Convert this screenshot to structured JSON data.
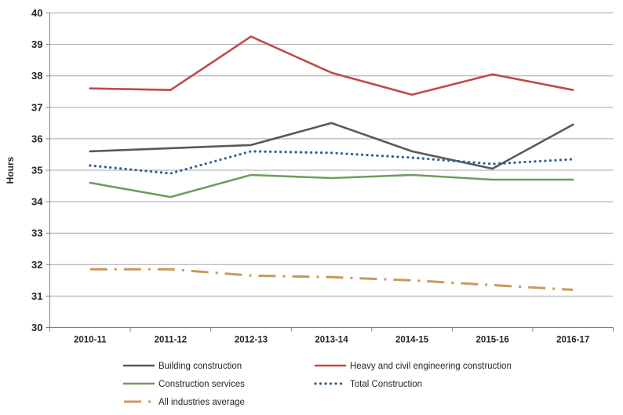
{
  "chart_data": {
    "type": "line",
    "title": "",
    "xlabel": "",
    "ylabel": "Hours",
    "ylim": [
      30,
      40
    ],
    "yticks": [
      30,
      31,
      32,
      33,
      34,
      35,
      36,
      37,
      38,
      39,
      40
    ],
    "grid": true,
    "legend_position": "bottom",
    "categories": [
      "2010-11",
      "2011-12",
      "2012-13",
      "2013-14",
      "2014-15",
      "2015-16",
      "2016-17"
    ],
    "series": [
      {
        "name": "Building construction",
        "color": "#595959",
        "style": "solid",
        "values": [
          35.6,
          35.7,
          35.8,
          36.5,
          35.6,
          35.05,
          36.45
        ]
      },
      {
        "name": "Heavy and civil engineering construction",
        "color": "#BE4B48",
        "style": "solid",
        "values": [
          37.6,
          37.55,
          39.25,
          38.1,
          37.4,
          38.05,
          37.55
        ]
      },
      {
        "name": "Construction services",
        "color": "#6D9E5B",
        "style": "solid",
        "values": [
          34.6,
          34.15,
          34.85,
          34.75,
          34.85,
          34.7,
          34.7
        ]
      },
      {
        "name": "Total Construction",
        "color": "#2E6096",
        "style": "dotted",
        "values": [
          35.15,
          34.9,
          35.6,
          35.55,
          35.4,
          35.2,
          35.35
        ]
      },
      {
        "name": "All industries average",
        "color": "#C89A5C",
        "style": "dashdot",
        "values": [
          31.85,
          31.85,
          31.65,
          31.6,
          31.5,
          31.35,
          31.2
        ]
      }
    ],
    "legend_rows": [
      [
        0,
        1
      ],
      [
        2,
        3
      ],
      [
        4
      ]
    ],
    "colors": {
      "gridline": "#A6A6A6",
      "axis": "#808080",
      "tick_text": "#262626",
      "background": "#FFFFFF"
    }
  }
}
